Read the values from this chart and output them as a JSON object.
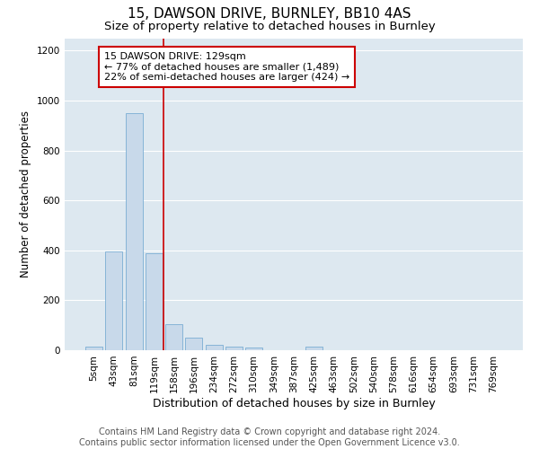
{
  "title_line1": "15, DAWSON DRIVE, BURNLEY, BB10 4AS",
  "title_line2": "Size of property relative to detached houses in Burnley",
  "xlabel": "Distribution of detached houses by size in Burnley",
  "ylabel": "Number of detached properties",
  "categories": [
    "5sqm",
    "43sqm",
    "81sqm",
    "119sqm",
    "158sqm",
    "196sqm",
    "234sqm",
    "272sqm",
    "310sqm",
    "349sqm",
    "387sqm",
    "425sqm",
    "463sqm",
    "502sqm",
    "540sqm",
    "578sqm",
    "616sqm",
    "654sqm",
    "693sqm",
    "731sqm",
    "769sqm"
  ],
  "values": [
    15,
    395,
    950,
    390,
    105,
    52,
    22,
    15,
    12,
    0,
    0,
    15,
    0,
    0,
    0,
    0,
    0,
    0,
    0,
    0,
    0
  ],
  "bar_color": "#c8d9ea",
  "bar_edge_color": "#7aadd4",
  "vline_x_pos": 3.5,
  "vline_color": "#cc0000",
  "annotation_text": "15 DAWSON DRIVE: 129sqm\n← 77% of detached houses are smaller (1,489)\n22% of semi-detached houses are larger (424) →",
  "annotation_box_facecolor": "#ffffff",
  "annotation_box_edgecolor": "#cc0000",
  "footnote": "Contains HM Land Registry data © Crown copyright and database right 2024.\nContains public sector information licensed under the Open Government Licence v3.0.",
  "ylim": [
    0,
    1250
  ],
  "yticks": [
    0,
    200,
    400,
    600,
    800,
    1000,
    1200
  ],
  "plot_bg_color": "#dde8f0",
  "fig_bg_color": "#ffffff",
  "grid_color": "#ffffff",
  "title1_fontsize": 11,
  "title2_fontsize": 9.5,
  "xlabel_fontsize": 9,
  "ylabel_fontsize": 8.5,
  "tick_fontsize": 7.5,
  "annotation_fontsize": 8,
  "footnote_fontsize": 7
}
